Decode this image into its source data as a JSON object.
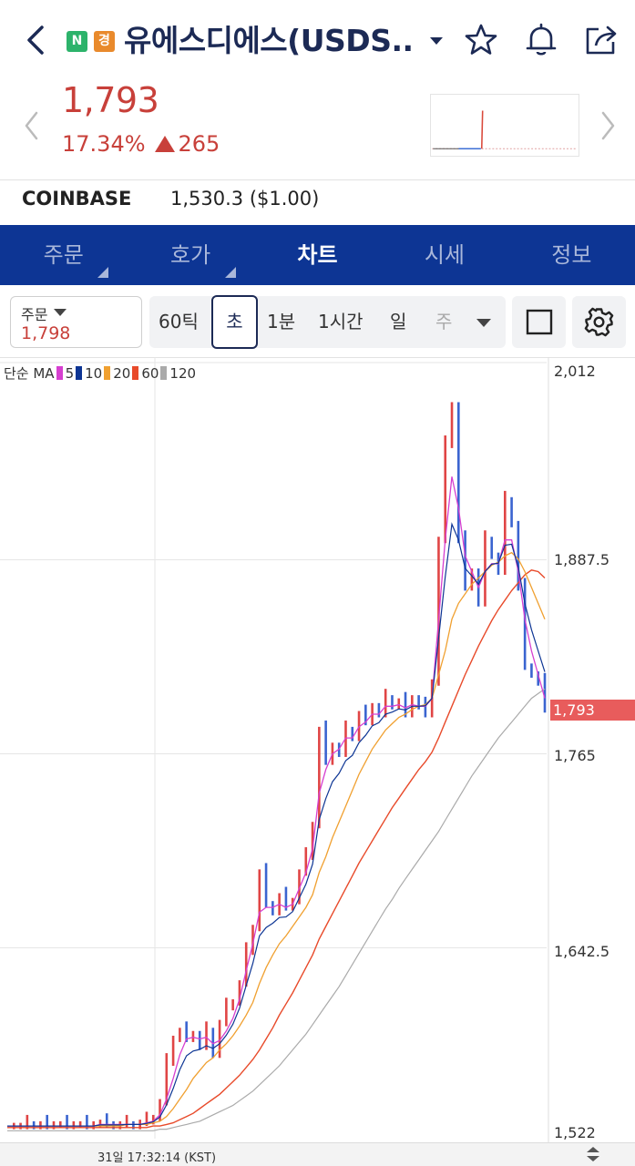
{
  "header": {
    "title": "유에스디에스(USDS...",
    "badge_n": "N",
    "badge_k": "경",
    "icons": [
      "back-icon",
      "dropdown-caret-icon",
      "star-icon",
      "bell-icon",
      "share-icon"
    ]
  },
  "quote": {
    "price": "1,793",
    "change_pct": "17.34%",
    "change_abs": "265",
    "direction": "up",
    "color_up": "#c8403a"
  },
  "exchange": {
    "name": "COINBASE",
    "value": "1,530.3 ($1.00)"
  },
  "tabs": [
    {
      "label": "주문",
      "active": false,
      "corner": true
    },
    {
      "label": "호가",
      "active": false,
      "corner": true
    },
    {
      "label": "차트",
      "active": true,
      "corner": false
    },
    {
      "label": "시세",
      "active": false,
      "corner": false
    },
    {
      "label": "정보",
      "active": false,
      "corner": false
    }
  ],
  "toolbar": {
    "order_label": "주문",
    "order_value": "1,798",
    "intervals": [
      "60틱",
      "초",
      "1분",
      "1시간",
      "일",
      "주"
    ],
    "selected_interval": "초",
    "icons": [
      "square-icon",
      "gear-icon"
    ]
  },
  "chart_legend": {
    "type_label": "단순 MA",
    "periods": [
      {
        "label": "5",
        "color": "#d63fd0"
      },
      {
        "label": "10",
        "color": "#0d3594"
      },
      {
        "label": "20",
        "color": "#f0a030"
      },
      {
        "label": "60",
        "color": "#e84a2a"
      },
      {
        "label": "120",
        "color": "#aaaaaa"
      }
    ]
  },
  "chart_data": {
    "type": "line",
    "y_axis_labels": [
      "2,012",
      "1,887.5",
      "1,765",
      "1,642.5",
      "1,522"
    ],
    "current_price_tag": "1,793",
    "ylim": [
      1522,
      2012
    ],
    "time_label": "31일 17:32:14 (KST)",
    "price_series": [
      1530,
      1530,
      1530,
      1531,
      1530,
      1531,
      1530,
      1531,
      1531,
      1530,
      1531,
      1531,
      1530,
      1531,
      1532,
      1531,
      1530,
      1531,
      1531,
      1530,
      1532,
      1533,
      1535,
      1545,
      1570,
      1585,
      1590,
      1585,
      1588,
      1580,
      1590,
      1575,
      1595,
      1605,
      1608,
      1620,
      1640,
      1655,
      1690,
      1670,
      1665,
      1675,
      1668,
      1672,
      1690,
      1700,
      1720,
      1780,
      1760,
      1770,
      1765,
      1780,
      1775,
      1790,
      1785,
      1795,
      1790,
      1800,
      1795,
      1798,
      1790,
      1800,
      1795,
      1790,
      1810,
      1900,
      1960,
      1985,
      1900,
      1870,
      1880,
      1860,
      1900,
      1890,
      1880,
      1925,
      1910,
      1870,
      1820,
      1815,
      1810,
      1793
    ],
    "ma5": [
      1530,
      1530,
      1530,
      1530,
      1530,
      1530,
      1530,
      1530,
      1530,
      1530,
      1530,
      1530,
      1530,
      1530,
      1531,
      1531,
      1531,
      1531,
      1531,
      1531,
      1531,
      1532,
      1533,
      1537,
      1547,
      1560,
      1575,
      1585,
      1586,
      1585,
      1586,
      1582,
      1584,
      1590,
      1598,
      1610,
      1628,
      1645,
      1665,
      1668,
      1668,
      1670,
      1668,
      1670,
      1680,
      1690,
      1705,
      1740,
      1755,
      1765,
      1768,
      1775,
      1775,
      1782,
      1785,
      1790,
      1790,
      1795,
      1795,
      1796,
      1794,
      1796,
      1795,
      1795,
      1800,
      1850,
      1900,
      1940,
      1920,
      1890,
      1880,
      1870,
      1880,
      1885,
      1885,
      1900,
      1900,
      1880,
      1850,
      1830,
      1815,
      1800
    ],
    "ma20": [
      1530,
      1530,
      1530,
      1530,
      1530,
      1530,
      1530,
      1530,
      1530,
      1530,
      1530,
      1530,
      1530,
      1530,
      1530,
      1530,
      1530,
      1530,
      1531,
      1531,
      1531,
      1531,
      1532,
      1533,
      1536,
      1541,
      1547,
      1553,
      1560,
      1565,
      1570,
      1573,
      1578,
      1582,
      1587,
      1593,
      1600,
      1608,
      1620,
      1630,
      1638,
      1645,
      1650,
      1656,
      1662,
      1668,
      1676,
      1690,
      1700,
      1712,
      1722,
      1732,
      1742,
      1752,
      1760,
      1768,
      1774,
      1780,
      1784,
      1788,
      1790,
      1793,
      1795,
      1796,
      1800,
      1815,
      1830,
      1850,
      1860,
      1866,
      1872,
      1876,
      1880,
      1884,
      1886,
      1890,
      1892,
      1888,
      1880,
      1870,
      1860,
      1850
    ],
    "ma60": [
      1529,
      1529,
      1529,
      1529,
      1529,
      1529,
      1529,
      1529,
      1529,
      1529,
      1529,
      1529,
      1529,
      1529,
      1529,
      1529,
      1529,
      1529,
      1529,
      1529,
      1529,
      1529,
      1530,
      1530,
      1531,
      1532,
      1534,
      1536,
      1538,
      1541,
      1544,
      1547,
      1550,
      1554,
      1558,
      1562,
      1567,
      1572,
      1578,
      1585,
      1592,
      1600,
      1607,
      1614,
      1622,
      1630,
      1638,
      1648,
      1656,
      1664,
      1672,
      1680,
      1688,
      1696,
      1703,
      1710,
      1717,
      1724,
      1731,
      1737,
      1743,
      1749,
      1755,
      1760,
      1766,
      1775,
      1785,
      1795,
      1805,
      1815,
      1824,
      1833,
      1841,
      1849,
      1856,
      1862,
      1868,
      1873,
      1878,
      1881,
      1880,
      1876
    ],
    "ma120": [
      1527,
      1527,
      1527,
      1527,
      1527,
      1527,
      1527,
      1527,
      1527,
      1527,
      1527,
      1527,
      1527,
      1527,
      1527,
      1527,
      1527,
      1527,
      1527,
      1527,
      1527,
      1527,
      1527,
      1528,
      1528,
      1529,
      1530,
      1531,
      1532,
      1533,
      1535,
      1537,
      1539,
      1541,
      1543,
      1546,
      1549,
      1552,
      1556,
      1560,
      1564,
      1568,
      1573,
      1578,
      1583,
      1588,
      1594,
      1600,
      1606,
      1612,
      1618,
      1625,
      1632,
      1639,
      1646,
      1653,
      1660,
      1667,
      1673,
      1680,
      1686,
      1692,
      1698,
      1704,
      1710,
      1716,
      1723,
      1730,
      1737,
      1744,
      1751,
      1757,
      1763,
      1769,
      1775,
      1780,
      1785,
      1790,
      1795,
      1800,
      1803,
      1806
    ],
    "grid": true
  }
}
